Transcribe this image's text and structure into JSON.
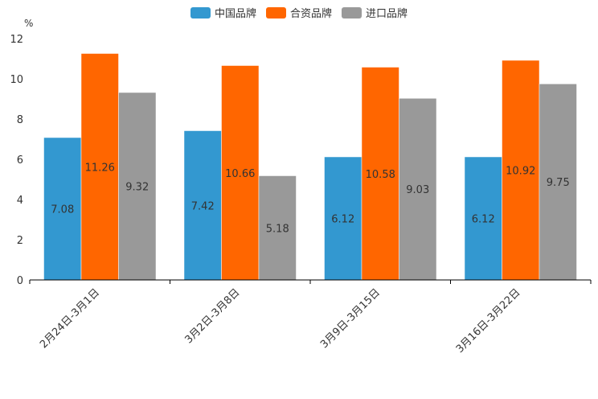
{
  "chart_data": {
    "type": "bar",
    "unit": "%",
    "categories": [
      "2月24日-3月1日",
      "3月2日-3月8日",
      "3月9日-3月15日",
      "3月16日-3月22日"
    ],
    "series": [
      {
        "name": "中国品牌",
        "color": "#3398d0",
        "values": [
          7.08,
          7.42,
          6.12,
          6.12
        ]
      },
      {
        "name": "合资品牌",
        "color": "#ff6600",
        "values": [
          11.26,
          10.66,
          10.58,
          10.92
        ]
      },
      {
        "name": "进口品牌",
        "color": "#999999",
        "values": [
          9.32,
          5.18,
          9.03,
          9.75
        ]
      }
    ],
    "ylim": [
      0,
      12
    ],
    "yticks": [
      0,
      2,
      4,
      6,
      8,
      10,
      12
    ],
    "legend_position": "top-center"
  }
}
